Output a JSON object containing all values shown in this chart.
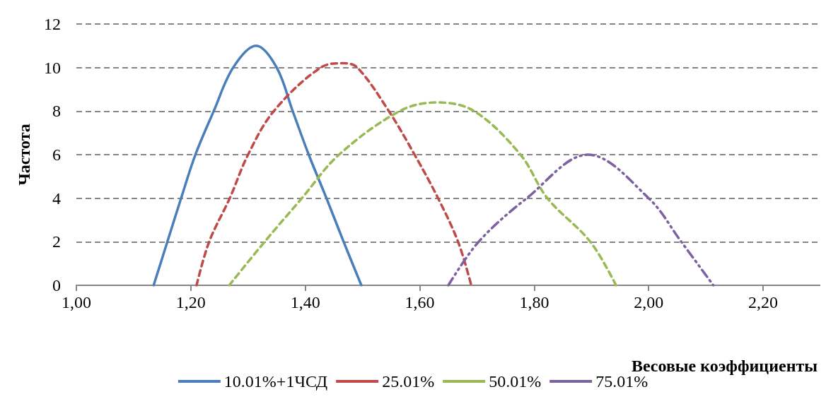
{
  "chart_data": {
    "type": "line",
    "xlabel": "Весовые коэффициенты",
    "ylabel": "Частота",
    "xlim": [
      1,
      2.3
    ],
    "xticks": [
      {
        "value": 1,
        "label": "1,00"
      },
      {
        "value": 1.2,
        "label": "1,20"
      },
      {
        "value": 1.4,
        "label": "1,40"
      },
      {
        "value": 1.6,
        "label": "1,60"
      },
      {
        "value": 1.8,
        "label": "1,80"
      },
      {
        "value": 2,
        "label": "2,00"
      },
      {
        "value": 2.2,
        "label": "2,20"
      }
    ],
    "ylim": [
      0,
      12
    ],
    "yticks": [
      0,
      2,
      4,
      6,
      8,
      10,
      12
    ],
    "grid": "y",
    "legend": "bottom",
    "marker": "none",
    "series": [
      {
        "name": "10.01%+1ЧСД",
        "color": "#4a7ebb",
        "line_style": "solid",
        "x": [
          1.135,
          1.159,
          1.183,
          1.208,
          1.24,
          1.274,
          1.314,
          1.35,
          1.378,
          1.406,
          1.437,
          1.467,
          1.498
        ],
        "values": [
          0,
          2,
          4,
          6,
          8,
          10,
          11,
          10,
          8,
          6,
          4,
          2,
          0
        ]
      },
      {
        "name": "25.01%",
        "color": "#be4b48",
        "line_style": "dashed",
        "x": [
          1.21,
          1.232,
          1.268,
          1.3,
          1.345,
          1.427,
          1.467,
          1.491,
          1.546,
          1.591,
          1.632,
          1.667,
          1.69
        ],
        "values": [
          0,
          2,
          4,
          6,
          8,
          10,
          10.2,
          10,
          8,
          6,
          4,
          2,
          0
        ]
      },
      {
        "name": "50.01%",
        "color": "#98b954",
        "line_style": "dashed",
        "x": [
          1.267,
          1.329,
          1.394,
          1.459,
          1.565,
          1.63,
          1.695,
          1.776,
          1.823,
          1.898,
          1.943
        ],
        "values": [
          0,
          2,
          4,
          6,
          8,
          8.4,
          8,
          6,
          4,
          2,
          0
        ]
      },
      {
        "name": "75.01%",
        "color": "#7d60a0",
        "line_style": "dotted",
        "x": [
          1.65,
          1.703,
          1.787,
          1.894,
          2.0,
          2.057,
          2.113
        ],
        "values": [
          0,
          2,
          4,
          6,
          4,
          2,
          0
        ]
      }
    ]
  }
}
